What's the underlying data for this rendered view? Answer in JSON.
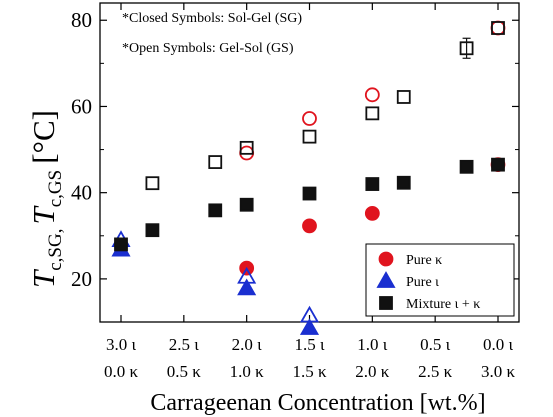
{
  "chart_data": {
    "type": "scatter",
    "title": "",
    "xlabel": "Carrageenan Concentration [wt.%]",
    "ylabel": {
      "sym1": "T",
      "sub1": "c,SG",
      "sep": ",",
      "sym2": "T",
      "sub2": "c,GS",
      "unit": "[°C]"
    },
    "xlim": [
      0,
      3.0
    ],
    "ylim": [
      10,
      84
    ],
    "y_ticks": [
      20,
      40,
      60,
      80
    ],
    "x_ticks": [
      {
        "x": 0.0,
        "iota": "3.0 ι",
        "kappa": "0.0 κ"
      },
      {
        "x": 0.5,
        "iota": "2.5 ι",
        "kappa": "0.5 κ"
      },
      {
        "x": 1.0,
        "iota": "2.0 ι",
        "kappa": "1.0 κ"
      },
      {
        "x": 1.5,
        "iota": "1.5 ι",
        "kappa": "1.5 κ"
      },
      {
        "x": 2.0,
        "iota": "1.0 ι",
        "kappa": "2.0 κ"
      },
      {
        "x": 2.5,
        "iota": "0.5 ι",
        "kappa": "2.5 κ"
      },
      {
        "x": 3.0,
        "iota": "0.0 ι",
        "kappa": "3.0 κ"
      }
    ],
    "grid": false,
    "legend_position": "bottom-right",
    "annotations": [
      "*Closed Symbols: Sol-Gel (SG)",
      "*Open Symbols: Gel-Sol (GS)"
    ],
    "series": [
      {
        "name": "Pure κ",
        "marker": "circle",
        "color": "#e0141e",
        "sol_gel": [
          {
            "x": 1.0,
            "y": 22.5
          },
          {
            "x": 1.5,
            "y": 32.3
          },
          {
            "x": 2.0,
            "y": 35.2
          },
          {
            "x": 3.0,
            "y": 46.5
          }
        ],
        "gel_sol": [
          {
            "x": 1.0,
            "y": 49.2
          },
          {
            "x": 1.5,
            "y": 57.2
          },
          {
            "x": 2.0,
            "y": 62.7
          },
          {
            "x": 3.0,
            "y": 78.2
          }
        ]
      },
      {
        "name": "Pure ι",
        "marker": "triangle",
        "color": "#1a2fd0",
        "sol_gel": [
          {
            "x": 0.0,
            "y": 26.8
          },
          {
            "x": 1.0,
            "y": 17.8
          },
          {
            "x": 1.5,
            "y": 8.6
          }
        ],
        "gel_sol": [
          {
            "x": 0.0,
            "y": 29.0
          },
          {
            "x": 1.0,
            "y": 20.5
          },
          {
            "x": 1.5,
            "y": 11.5
          }
        ]
      },
      {
        "name": "Mixture ι + κ",
        "marker": "square",
        "color": "#111111",
        "sol_gel": [
          {
            "x": 0.0,
            "y": 28.0
          },
          {
            "x": 0.25,
            "y": 31.3
          },
          {
            "x": 0.75,
            "y": 35.9
          },
          {
            "x": 1.0,
            "y": 37.2
          },
          {
            "x": 1.5,
            "y": 39.8
          },
          {
            "x": 2.0,
            "y": 42.0
          },
          {
            "x": 2.25,
            "y": 42.3
          },
          {
            "x": 2.75,
            "y": 46.0
          },
          {
            "x": 3.0,
            "y": 46.5
          }
        ],
        "gel_sol": [
          {
            "x": 0.25,
            "y": 42.2
          },
          {
            "x": 0.75,
            "y": 47.1
          },
          {
            "x": 1.0,
            "y": 50.4
          },
          {
            "x": 1.5,
            "y": 53.0
          },
          {
            "x": 2.0,
            "y": 58.4
          },
          {
            "x": 2.25,
            "y": 62.2
          },
          {
            "x": 2.75,
            "y": 73.5
          },
          {
            "x": 3.0,
            "y": 78.2
          }
        ]
      }
    ]
  }
}
